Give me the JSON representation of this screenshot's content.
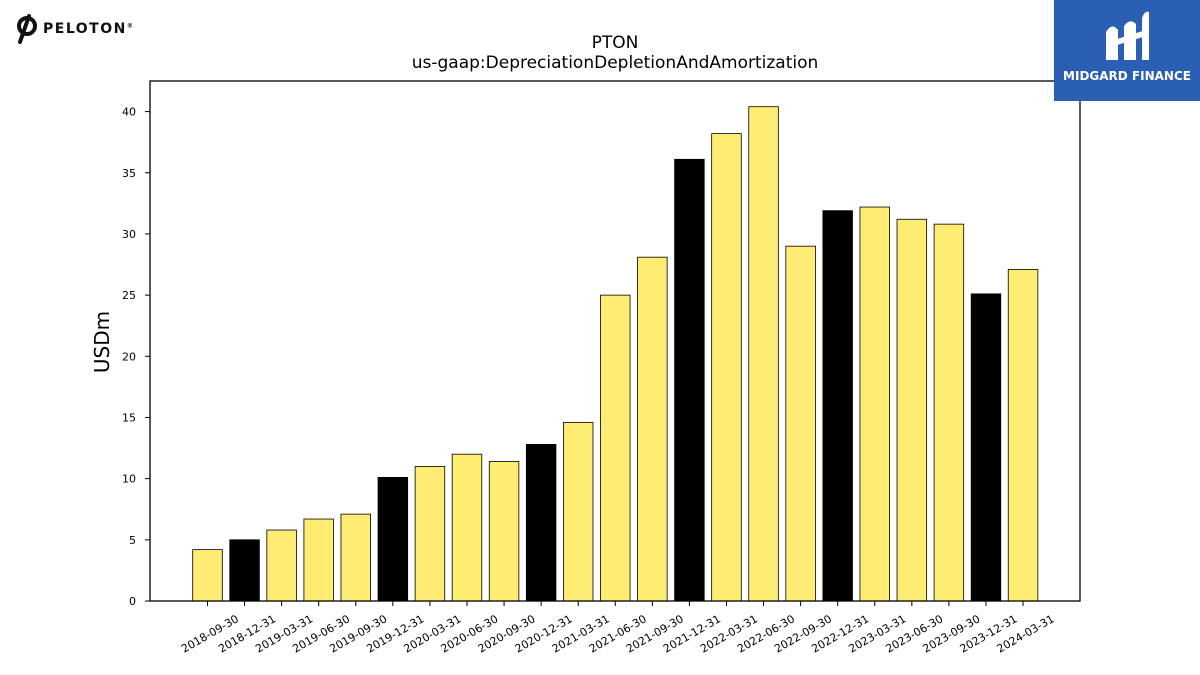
{
  "logos": {
    "left_text": "PELOTON",
    "right_text": "MIDGARD FINANCE"
  },
  "chart_data": {
    "type": "bar",
    "title": "PTON",
    "subtitle": "us-gaap:DepreciationDepletionAndAmortization",
    "xlabel": "",
    "ylabel": "USDm",
    "ylim": [
      0,
      42.5
    ],
    "yticks": [
      0,
      5,
      10,
      15,
      20,
      25,
      30,
      35,
      40
    ],
    "grid": false,
    "categories": [
      "2018-09-30",
      "2018-12-31",
      "2019-03-31",
      "2019-06-30",
      "2019-09-30",
      "2019-12-31",
      "2020-03-31",
      "2020-06-30",
      "2020-09-30",
      "2020-12-31",
      "2021-03-31",
      "2021-06-30",
      "2021-09-30",
      "2021-12-31",
      "2022-03-31",
      "2022-06-30",
      "2022-09-30",
      "2022-12-31",
      "2023-03-31",
      "2023-06-30",
      "2023-09-30",
      "2023-12-31",
      "2024-03-31"
    ],
    "values": [
      4.2,
      5.0,
      5.8,
      6.7,
      7.1,
      10.1,
      11.0,
      12.0,
      11.4,
      12.8,
      14.6,
      25.0,
      28.1,
      36.1,
      38.2,
      40.4,
      29.0,
      31.9,
      32.2,
      31.2,
      30.8,
      25.1,
      27.1
    ],
    "bar_colors": [
      "#ffec73",
      "#000000",
      "#ffec73",
      "#ffec73",
      "#ffec73",
      "#000000",
      "#ffec73",
      "#ffec73",
      "#ffec73",
      "#000000",
      "#ffec73",
      "#ffec73",
      "#ffec73",
      "#000000",
      "#ffec73",
      "#ffec73",
      "#ffec73",
      "#000000",
      "#ffec73",
      "#ffec73",
      "#ffec73",
      "#000000",
      "#ffec73"
    ],
    "colors": {
      "primary": "#ffec73",
      "highlight": "#000000",
      "edge": "#000000"
    }
  }
}
